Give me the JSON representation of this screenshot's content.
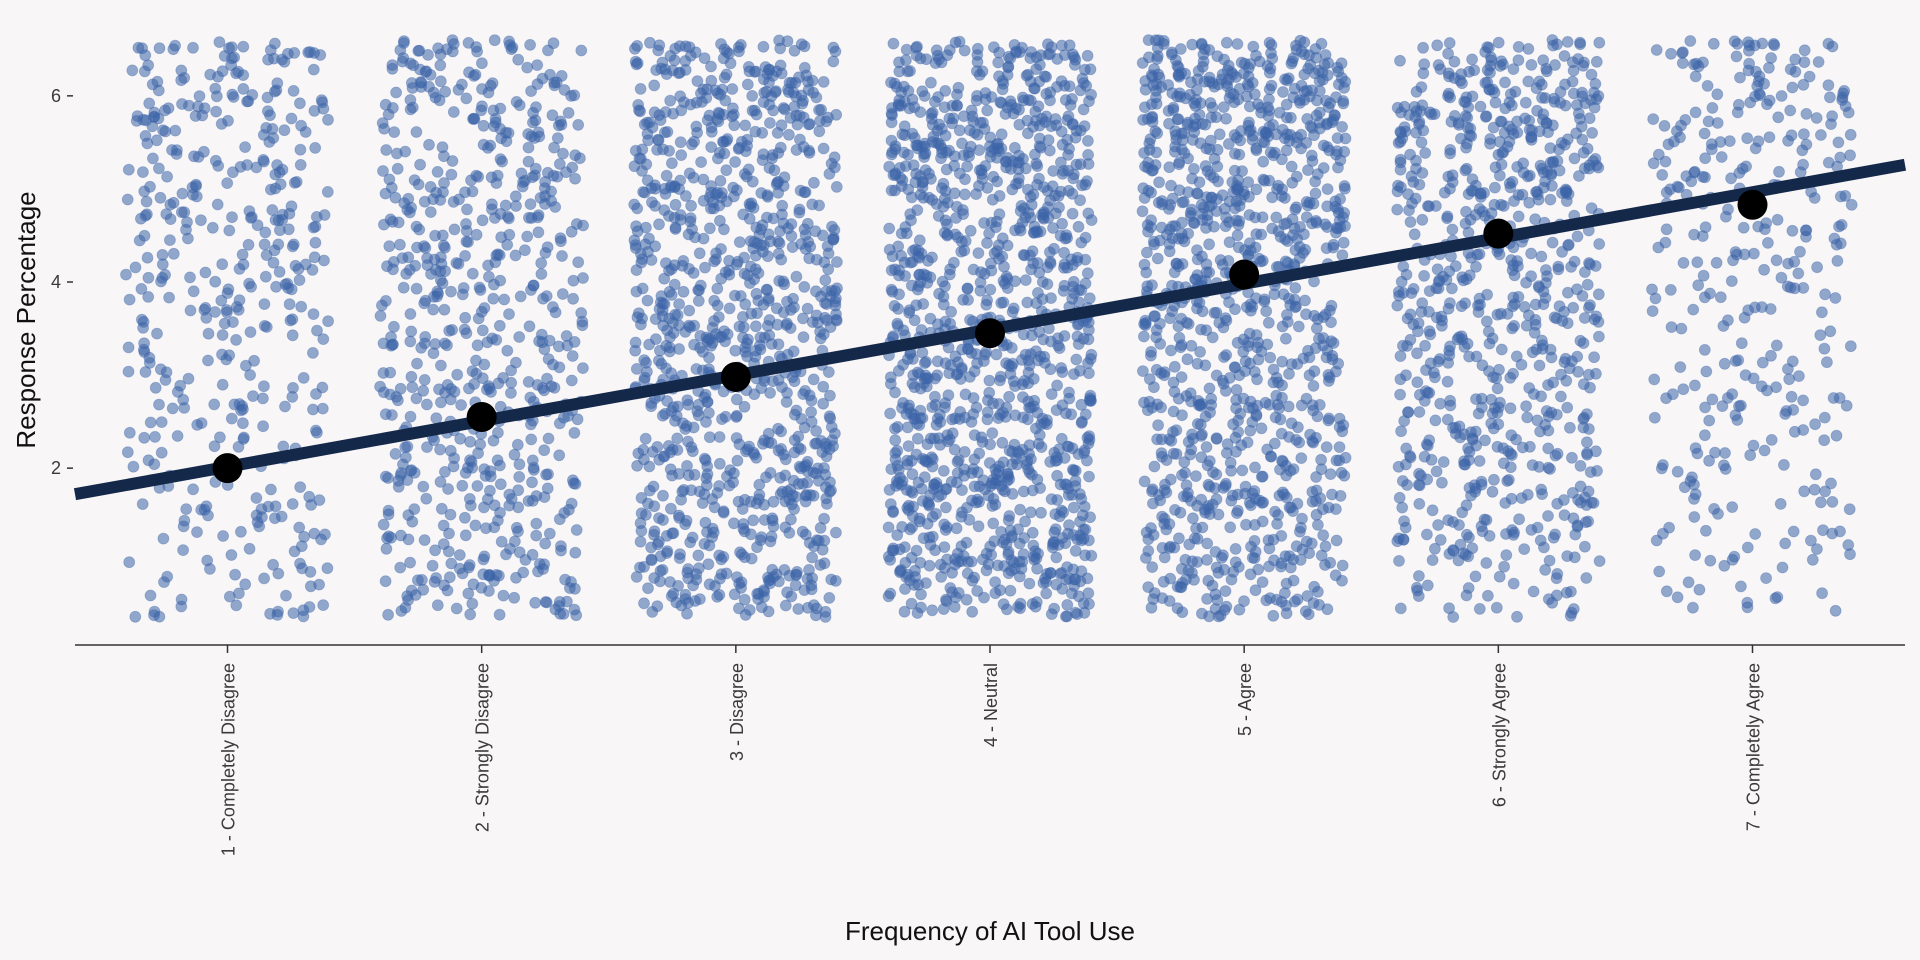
{
  "chart_data": {
    "type": "scatter",
    "title": "",
    "xlabel": "Frequency of AI Tool Use",
    "ylabel": "Response Percentage",
    "categories": [
      "1 - Completely Disagree",
      "2 - Strongly Disagree",
      "3 - Disagree",
      "4 - Neutral",
      "5 - Agree",
      "6 - Strongly Agree",
      "7 - Completely Agree"
    ],
    "yticks": [
      "2",
      "4",
      "6"
    ],
    "ylim": [
      0.1,
      6.6
    ],
    "xlim": [
      0.4,
      7.6
    ],
    "grid": false,
    "legend": "none",
    "colors": {
      "points": "#3d64a8",
      "line": "#14284a",
      "means": "#000000",
      "background": "#f8f6f7"
    },
    "series": [
      {
        "type": "jittered-points",
        "jitter_width": 0.4,
        "y_range": [
          0.4,
          6.6
        ],
        "counts": [
          420,
          640,
          980,
          1180,
          1050,
          760,
          330
        ],
        "density_note": "dense everywhere; sparser at low y for categories 5-7 and at high y for category 1"
      },
      {
        "type": "mean-points",
        "x": [
          1,
          2,
          3,
          4,
          5,
          6,
          7
        ],
        "y": [
          2.0,
          2.55,
          2.98,
          3.45,
          4.08,
          4.52,
          4.83
        ]
      },
      {
        "type": "regression-line",
        "x": [
          0.4,
          7.6
        ],
        "y": [
          1.72,
          5.26
        ]
      }
    ]
  }
}
